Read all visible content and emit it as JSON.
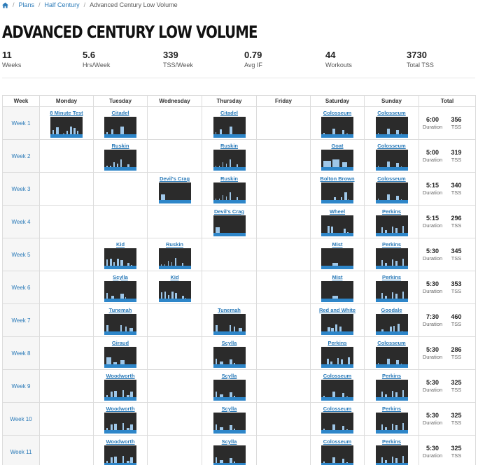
{
  "breadcrumb": {
    "home_icon": "home-icon",
    "items": [
      "Plans",
      "Half Century"
    ],
    "current": "Advanced Century Low Volume"
  },
  "page_title": "ADVANCED CENTURY LOW VOLUME",
  "stats": [
    {
      "value": "11",
      "label": "Weeks"
    },
    {
      "value": "5.6",
      "label": "Hrs/Week"
    },
    {
      "value": "339",
      "label": "TSS/Week"
    },
    {
      "value": "0.79",
      "label": "Avg IF"
    },
    {
      "value": "44",
      "label": "Workouts"
    },
    {
      "value": "3730",
      "label": "Total TSS"
    }
  ],
  "table": {
    "headers": [
      "Week",
      "Monday",
      "Tuesday",
      "Wednesday",
      "Thursday",
      "Friday",
      "Saturday",
      "Sunday",
      "Total"
    ],
    "total_labels": {
      "duration": "Duration",
      "tss": "TSS"
    },
    "weeks": [
      {
        "label": "Week 1",
        "days": [
          "8 Minute Test",
          "Citadel",
          "",
          "Citadel",
          "",
          "Colosseum",
          "Colosseum"
        ],
        "duration": "6:00",
        "tss": "356"
      },
      {
        "label": "Week 2",
        "days": [
          "",
          "Ruskin",
          "",
          "Ruskin",
          "",
          "Goat",
          "Colosseum"
        ],
        "duration": "5:00",
        "tss": "319"
      },
      {
        "label": "Week 3",
        "days": [
          "",
          "",
          "Devil's Crag",
          "Ruskin",
          "",
          "Bolton Brown",
          "Colosseum"
        ],
        "duration": "5:15",
        "tss": "340"
      },
      {
        "label": "Week 4",
        "days": [
          "",
          "",
          "",
          "Devil's Crag",
          "",
          "Wheel",
          "Perkins"
        ],
        "duration": "5:15",
        "tss": "296"
      },
      {
        "label": "Week 5",
        "days": [
          "",
          "Kid",
          "Ruskin",
          "",
          "",
          "Mist",
          "Perkins"
        ],
        "duration": "5:30",
        "tss": "345"
      },
      {
        "label": "Week 6",
        "days": [
          "",
          "Scylla",
          "Kid",
          "",
          "",
          "Mist",
          "Perkins"
        ],
        "duration": "5:30",
        "tss": "353"
      },
      {
        "label": "Week 7",
        "days": [
          "",
          "Tunemah",
          "",
          "Tunemah",
          "",
          "Red and White",
          "Goodale"
        ],
        "duration": "7:30",
        "tss": "460"
      },
      {
        "label": "Week 8",
        "days": [
          "",
          "Giraud",
          "",
          "Scylla",
          "",
          "Perkins",
          "Colosseum"
        ],
        "duration": "5:30",
        "tss": "286"
      },
      {
        "label": "Week 9",
        "days": [
          "",
          "Woodworth",
          "",
          "Scylla",
          "",
          "Colosseum",
          "Perkins"
        ],
        "duration": "5:30",
        "tss": "325"
      },
      {
        "label": "Week 10",
        "days": [
          "",
          "Woodworth",
          "",
          "Scylla",
          "",
          "Colosseum",
          "Perkins"
        ],
        "duration": "5:30",
        "tss": "325"
      },
      {
        "label": "Week 11",
        "days": [
          "",
          "Woodworth",
          "",
          "Scylla",
          "",
          "Colosseum",
          "Perkins"
        ],
        "duration": "5:30",
        "tss": "325"
      }
    ]
  }
}
